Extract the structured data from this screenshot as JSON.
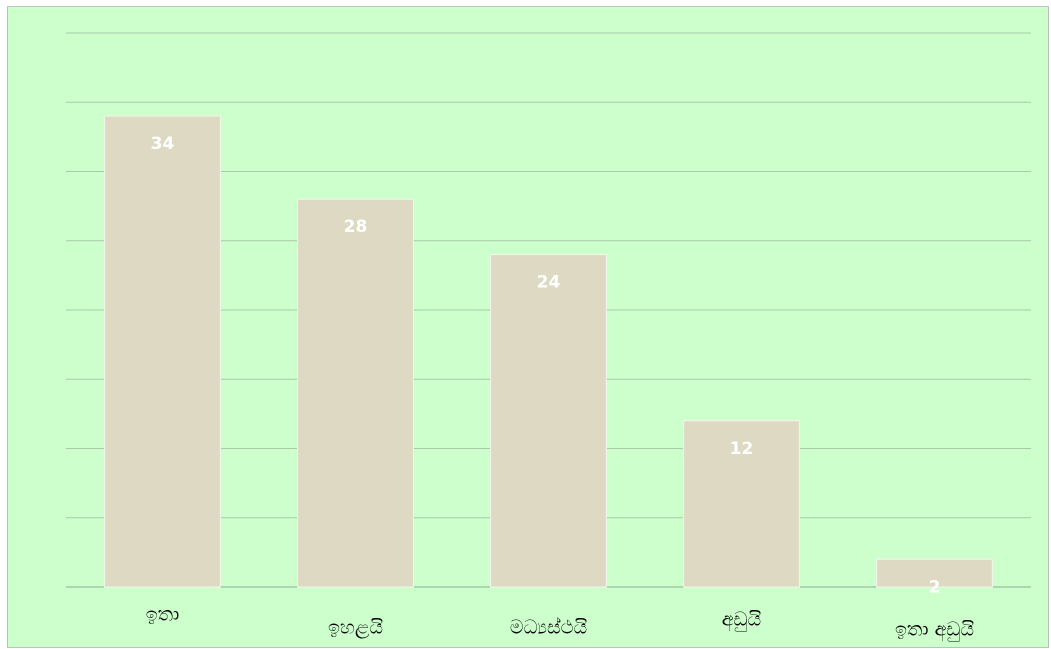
{
  "chart_data": {
    "type": "bar",
    "categories": [
      "ඉතා",
      "ඉහළයි",
      "මධ්‍යස්ථයි",
      "අඩුයි",
      "ඉතා අඩුයි"
    ],
    "values": [
      34,
      28,
      24,
      12,
      2
    ],
    "color": "#ddd9c3",
    "ylim": [
      0,
      40
    ],
    "yticks": [
      0,
      5,
      10,
      15,
      20,
      25,
      30,
      35,
      40
    ],
    "grid": true
  }
}
